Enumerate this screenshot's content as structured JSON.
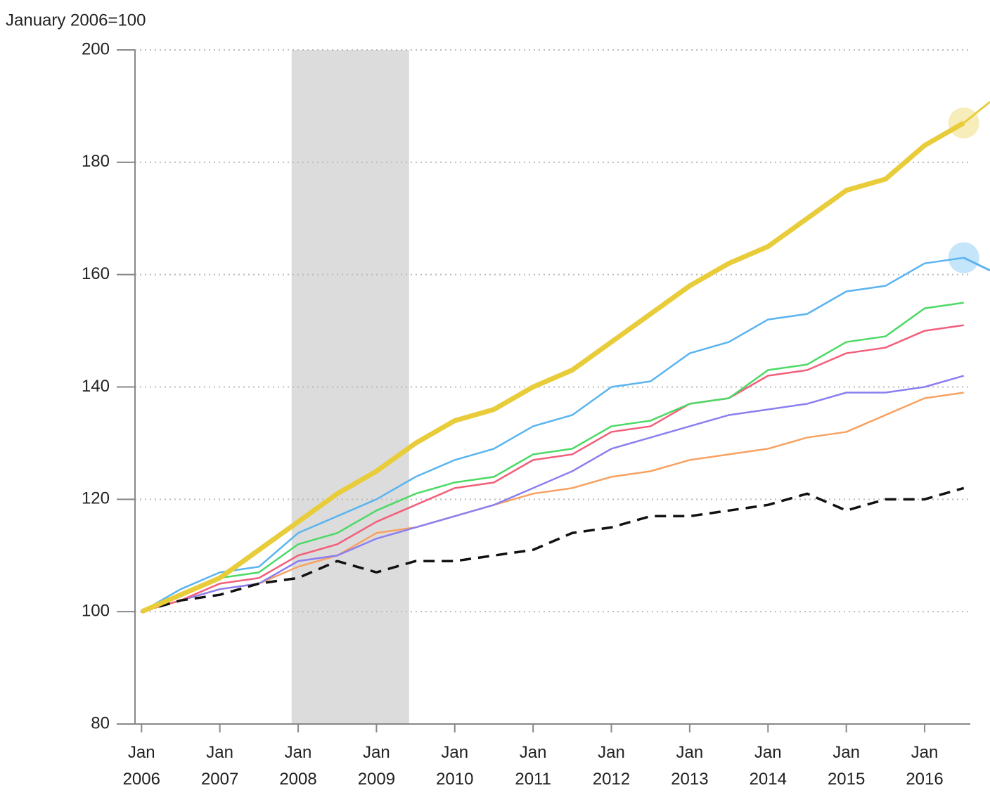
{
  "chart_data": {
    "type": "line",
    "subtitle": "January 2006=100",
    "x": [
      "2006-01",
      "2006-07",
      "2007-01",
      "2007-07",
      "2008-01",
      "2008-07",
      "2009-01",
      "2009-07",
      "2010-01",
      "2010-07",
      "2011-01",
      "2011-07",
      "2012-01",
      "2012-07",
      "2013-01",
      "2013-07",
      "2014-01",
      "2014-07",
      "2015-01",
      "2015-07",
      "2016-01",
      "2016-07"
    ],
    "series": [
      {
        "color": "#f7a262",
        "values": [
          100,
          102,
          104,
          105,
          108,
          110,
          114,
          115,
          117,
          119,
          121,
          122,
          124,
          125,
          127,
          128,
          129,
          131,
          132,
          135,
          138,
          139
        ]
      },
      {
        "color": "#8a7ff0",
        "values": [
          100,
          102,
          104,
          105,
          109,
          110,
          113,
          115,
          117,
          119,
          122,
          125,
          129,
          131,
          133,
          135,
          136,
          137,
          139,
          139,
          140,
          142
        ]
      },
      {
        "color": "#f25f7a",
        "values": [
          100,
          102,
          105,
          106,
          110,
          112,
          116,
          119,
          122,
          123,
          127,
          128,
          132,
          133,
          137,
          138,
          142,
          143,
          146,
          147,
          150,
          151
        ]
      },
      {
        "color": "#4cd964",
        "values": [
          100,
          103,
          106,
          107,
          112,
          114,
          118,
          121,
          123,
          124,
          128,
          129,
          133,
          134,
          137,
          138,
          143,
          144,
          148,
          149,
          154,
          155
        ]
      },
      {
        "color": "#5ab4f0",
        "values": [
          100,
          104,
          107,
          108,
          114,
          117,
          120,
          124,
          127,
          129,
          133,
          135,
          140,
          141,
          146,
          148,
          152,
          153,
          157,
          158,
          162,
          163
        ],
        "highlight": true
      },
      {
        "color": "#111111",
        "dashed": true,
        "values": [
          100,
          102,
          103,
          105,
          106,
          109,
          107,
          109,
          109,
          110,
          111,
          114,
          115,
          117,
          117,
          118,
          119,
          121,
          118,
          120,
          120,
          122
        ]
      },
      {
        "color": "#e8cc3a",
        "thick": true,
        "highlight": true,
        "values": [
          100,
          103,
          106,
          111,
          116,
          121,
          125,
          130,
          134,
          136,
          140,
          143,
          148,
          153,
          158,
          162,
          165,
          170,
          175,
          177,
          183,
          187
        ]
      }
    ],
    "shade": [
      "2007-12",
      "2009-06"
    ],
    "xlim": [
      "2005-12",
      "2016-08"
    ],
    "xticks": [
      {
        "value": "2006-01",
        "label": "Jan 2006"
      },
      {
        "value": "2007-01",
        "label": "Jan 2007"
      },
      {
        "value": "2008-01",
        "label": "Jan 2008"
      },
      {
        "value": "2009-01",
        "label": "Jan 2009"
      },
      {
        "value": "2010-01",
        "label": "Jan 2010"
      },
      {
        "value": "2011-01",
        "label": "Jan 2011"
      },
      {
        "value": "2012-01",
        "label": "Jan 2012"
      },
      {
        "value": "2013-01",
        "label": "Jan 2013"
      },
      {
        "value": "2014-01",
        "label": "Jan 2014"
      },
      {
        "value": "2015-01",
        "label": "Jan 2015"
      },
      {
        "value": "2016-01",
        "label": "Jan 2016"
      }
    ],
    "ylim": [
      80,
      200
    ],
    "yticks": [
      80,
      100,
      120,
      140,
      160,
      180,
      200
    ],
    "grid": true
  }
}
